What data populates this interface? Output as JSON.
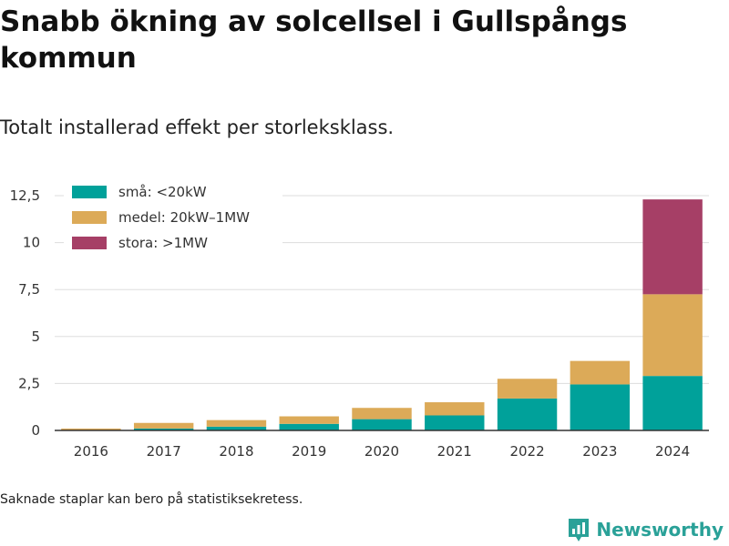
{
  "title": "Snabb ökning av solcellsel i Gullspångs kommun",
  "subtitle": "Totalt installerad effekt per storleksklass.",
  "footnote": "Saknade staplar kan bero på statistiksekretess.",
  "brand": "Newsworthy",
  "colors": {
    "sma": "#00a19a",
    "medel": "#dcaa58",
    "stora": "#a63f66",
    "grid": "#dddddd",
    "axis": "#333333",
    "brand": "#2aa198"
  },
  "chart_data": {
    "type": "bar",
    "stacked": true,
    "categories": [
      "2016",
      "2017",
      "2018",
      "2019",
      "2020",
      "2021",
      "2022",
      "2023",
      "2024"
    ],
    "series": [
      {
        "name": "små: <20kW",
        "color": "#00a19a",
        "values": [
          0.0,
          0.1,
          0.2,
          0.35,
          0.6,
          0.8,
          1.7,
          2.45,
          2.9
        ]
      },
      {
        "name": "medel: 20kW–1MW",
        "color": "#dcaa58",
        "values": [
          0.1,
          0.3,
          0.35,
          0.4,
          0.6,
          0.7,
          1.05,
          1.25,
          4.35
        ]
      },
      {
        "name": "stora: >1MW",
        "color": "#a63f66",
        "values": [
          0,
          0,
          0,
          0,
          0,
          0,
          0,
          0,
          5.05
        ]
      }
    ],
    "ylim": [
      0,
      12.5
    ],
    "yticks": [
      "0",
      "2,5",
      "5",
      "7,5",
      "10",
      "12,5"
    ],
    "grid": true,
    "legend_position": "top-left"
  }
}
